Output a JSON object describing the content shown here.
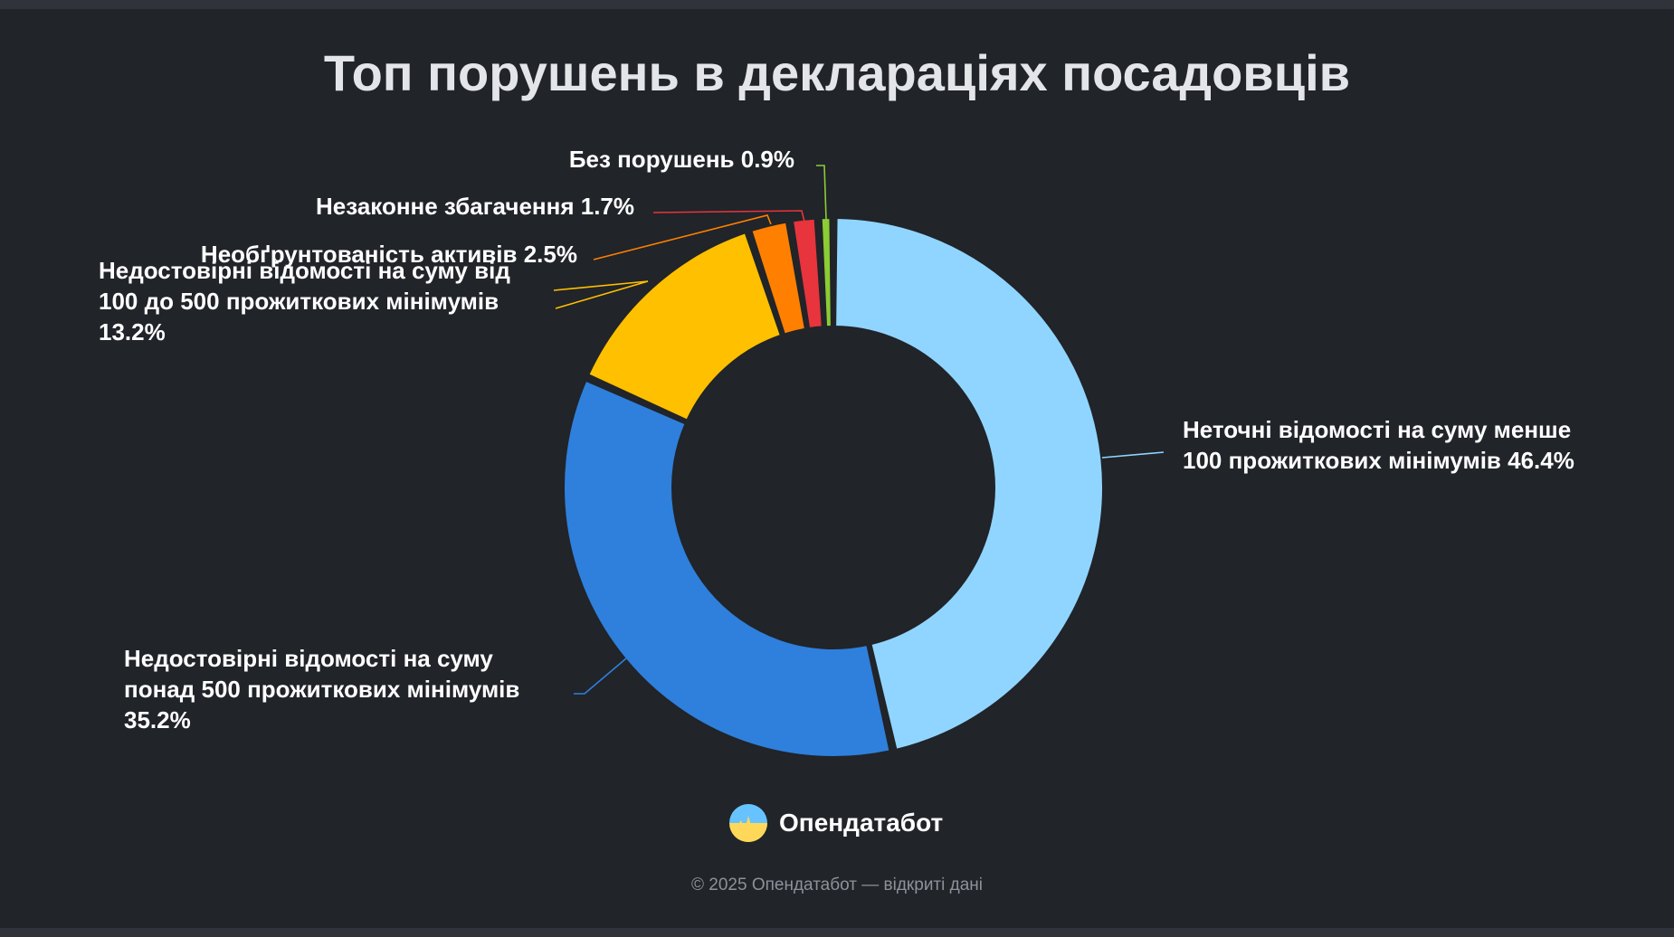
{
  "page": {
    "title": "Топ порушень в деклараціях посадовців",
    "brand_name": "Опендатабот",
    "footer": "© 2025 Опендатабот — відкриті дані",
    "logo_icon": "logo-icon"
  },
  "chart_data": {
    "type": "pie",
    "donut": true,
    "title": "Топ порушень в деклараціях посадовців",
    "slices": [
      {
        "label_lines": [
          "Неточні відомості на суму менше",
          "100 прожиткових мінімумів 46.4%"
        ],
        "value": 46.4,
        "color": "#90d5ff"
      },
      {
        "label_lines": [
          "Недостовірні відомості на суму",
          "понад 500 прожиткових мінімумів",
          "35.2%"
        ],
        "value": 35.2,
        "color": "#2e80dc"
      },
      {
        "label_lines": [
          "Недостовірні відомості на суму від",
          "100 до 500 прожиткових мінімумів",
          "13.2%"
        ],
        "value": 13.2,
        "color": "#ffc000"
      },
      {
        "label_lines": [
          "Необґрунтованість активів 2.5%"
        ],
        "value": 2.5,
        "color": "#ff8000"
      },
      {
        "label_lines": [
          "Незаконне збагачення 1.7%"
        ],
        "value": 1.7,
        "color": "#e8343c"
      },
      {
        "label_lines": [
          "Без порушень 0.9%"
        ],
        "value": 0.9,
        "color": "#8ccc34"
      }
    ]
  }
}
